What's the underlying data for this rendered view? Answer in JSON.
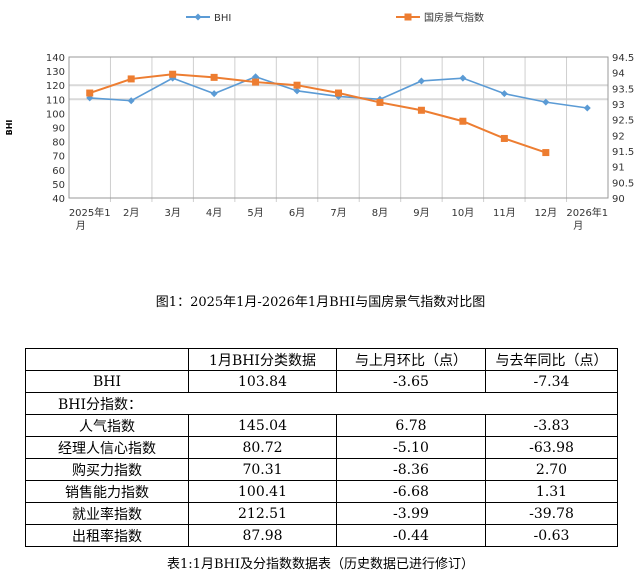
{
  "chart_data": {
    "type": "line",
    "title": "",
    "categories": [
      "2025年1月",
      "2月",
      "3月",
      "4月",
      "5月",
      "6月",
      "7月",
      "8月",
      "9月",
      "10月",
      "11月",
      "12月",
      "2026年1月"
    ],
    "ylabel": "BHI",
    "ylim": [
      40,
      140
    ],
    "y2lim": [
      90,
      94.5
    ],
    "yticks": [
      "140",
      "130",
      "120",
      "110",
      "100",
      "90",
      "80",
      "70",
      "60",
      "50",
      "40"
    ],
    "y2ticks": [
      "94.5",
      "94",
      "93.5",
      "93",
      "92.5",
      "92",
      "91.5",
      "91",
      "90.5",
      "90"
    ],
    "legend_position": "top",
    "series": [
      {
        "name": "BHI",
        "axis": "left",
        "color": "#5b9bd5",
        "marker": "diamond",
        "values": [
          111,
          109,
          125,
          114,
          126,
          116,
          112,
          110,
          123,
          125,
          114,
          108,
          103.84
        ]
      },
      {
        "name": "国房景气指数",
        "axis": "right",
        "color": "#ed7d31",
        "marker": "square",
        "values": [
          93.35,
          93.8,
          93.95,
          93.85,
          93.7,
          93.6,
          93.35,
          93.05,
          92.8,
          92.45,
          91.9,
          91.45,
          null
        ]
      }
    ]
  },
  "figure_title": "图1：2025年1月-2026年1月BHI与国房景气指数对比图",
  "table": {
    "headers": [
      "",
      "1月BHI分类数据",
      "与上月环比（点）",
      "与去年同比（点）"
    ],
    "rows": [
      [
        "BHI",
        "103.84",
        "-3.65",
        "-7.34"
      ],
      [
        "BHI分指数：",
        "",
        "",
        ""
      ],
      [
        "人气指数",
        "145.04",
        "6.78",
        "-3.83"
      ],
      [
        "经理人信心指数",
        "80.72",
        "-5.10",
        "-63.98"
      ],
      [
        "购买力指数",
        "70.31",
        "-8.36",
        "2.70"
      ],
      [
        "销售能力指数",
        "100.41",
        "-6.68",
        "1.31"
      ],
      [
        "就业率指数",
        "212.51",
        "-3.99",
        "-39.78"
      ],
      [
        "出租率指数",
        "87.98",
        "-0.44",
        "-0.63"
      ]
    ]
  },
  "caption": "表1:1月BHI及分指数数据表（历史数据已进行修订）"
}
